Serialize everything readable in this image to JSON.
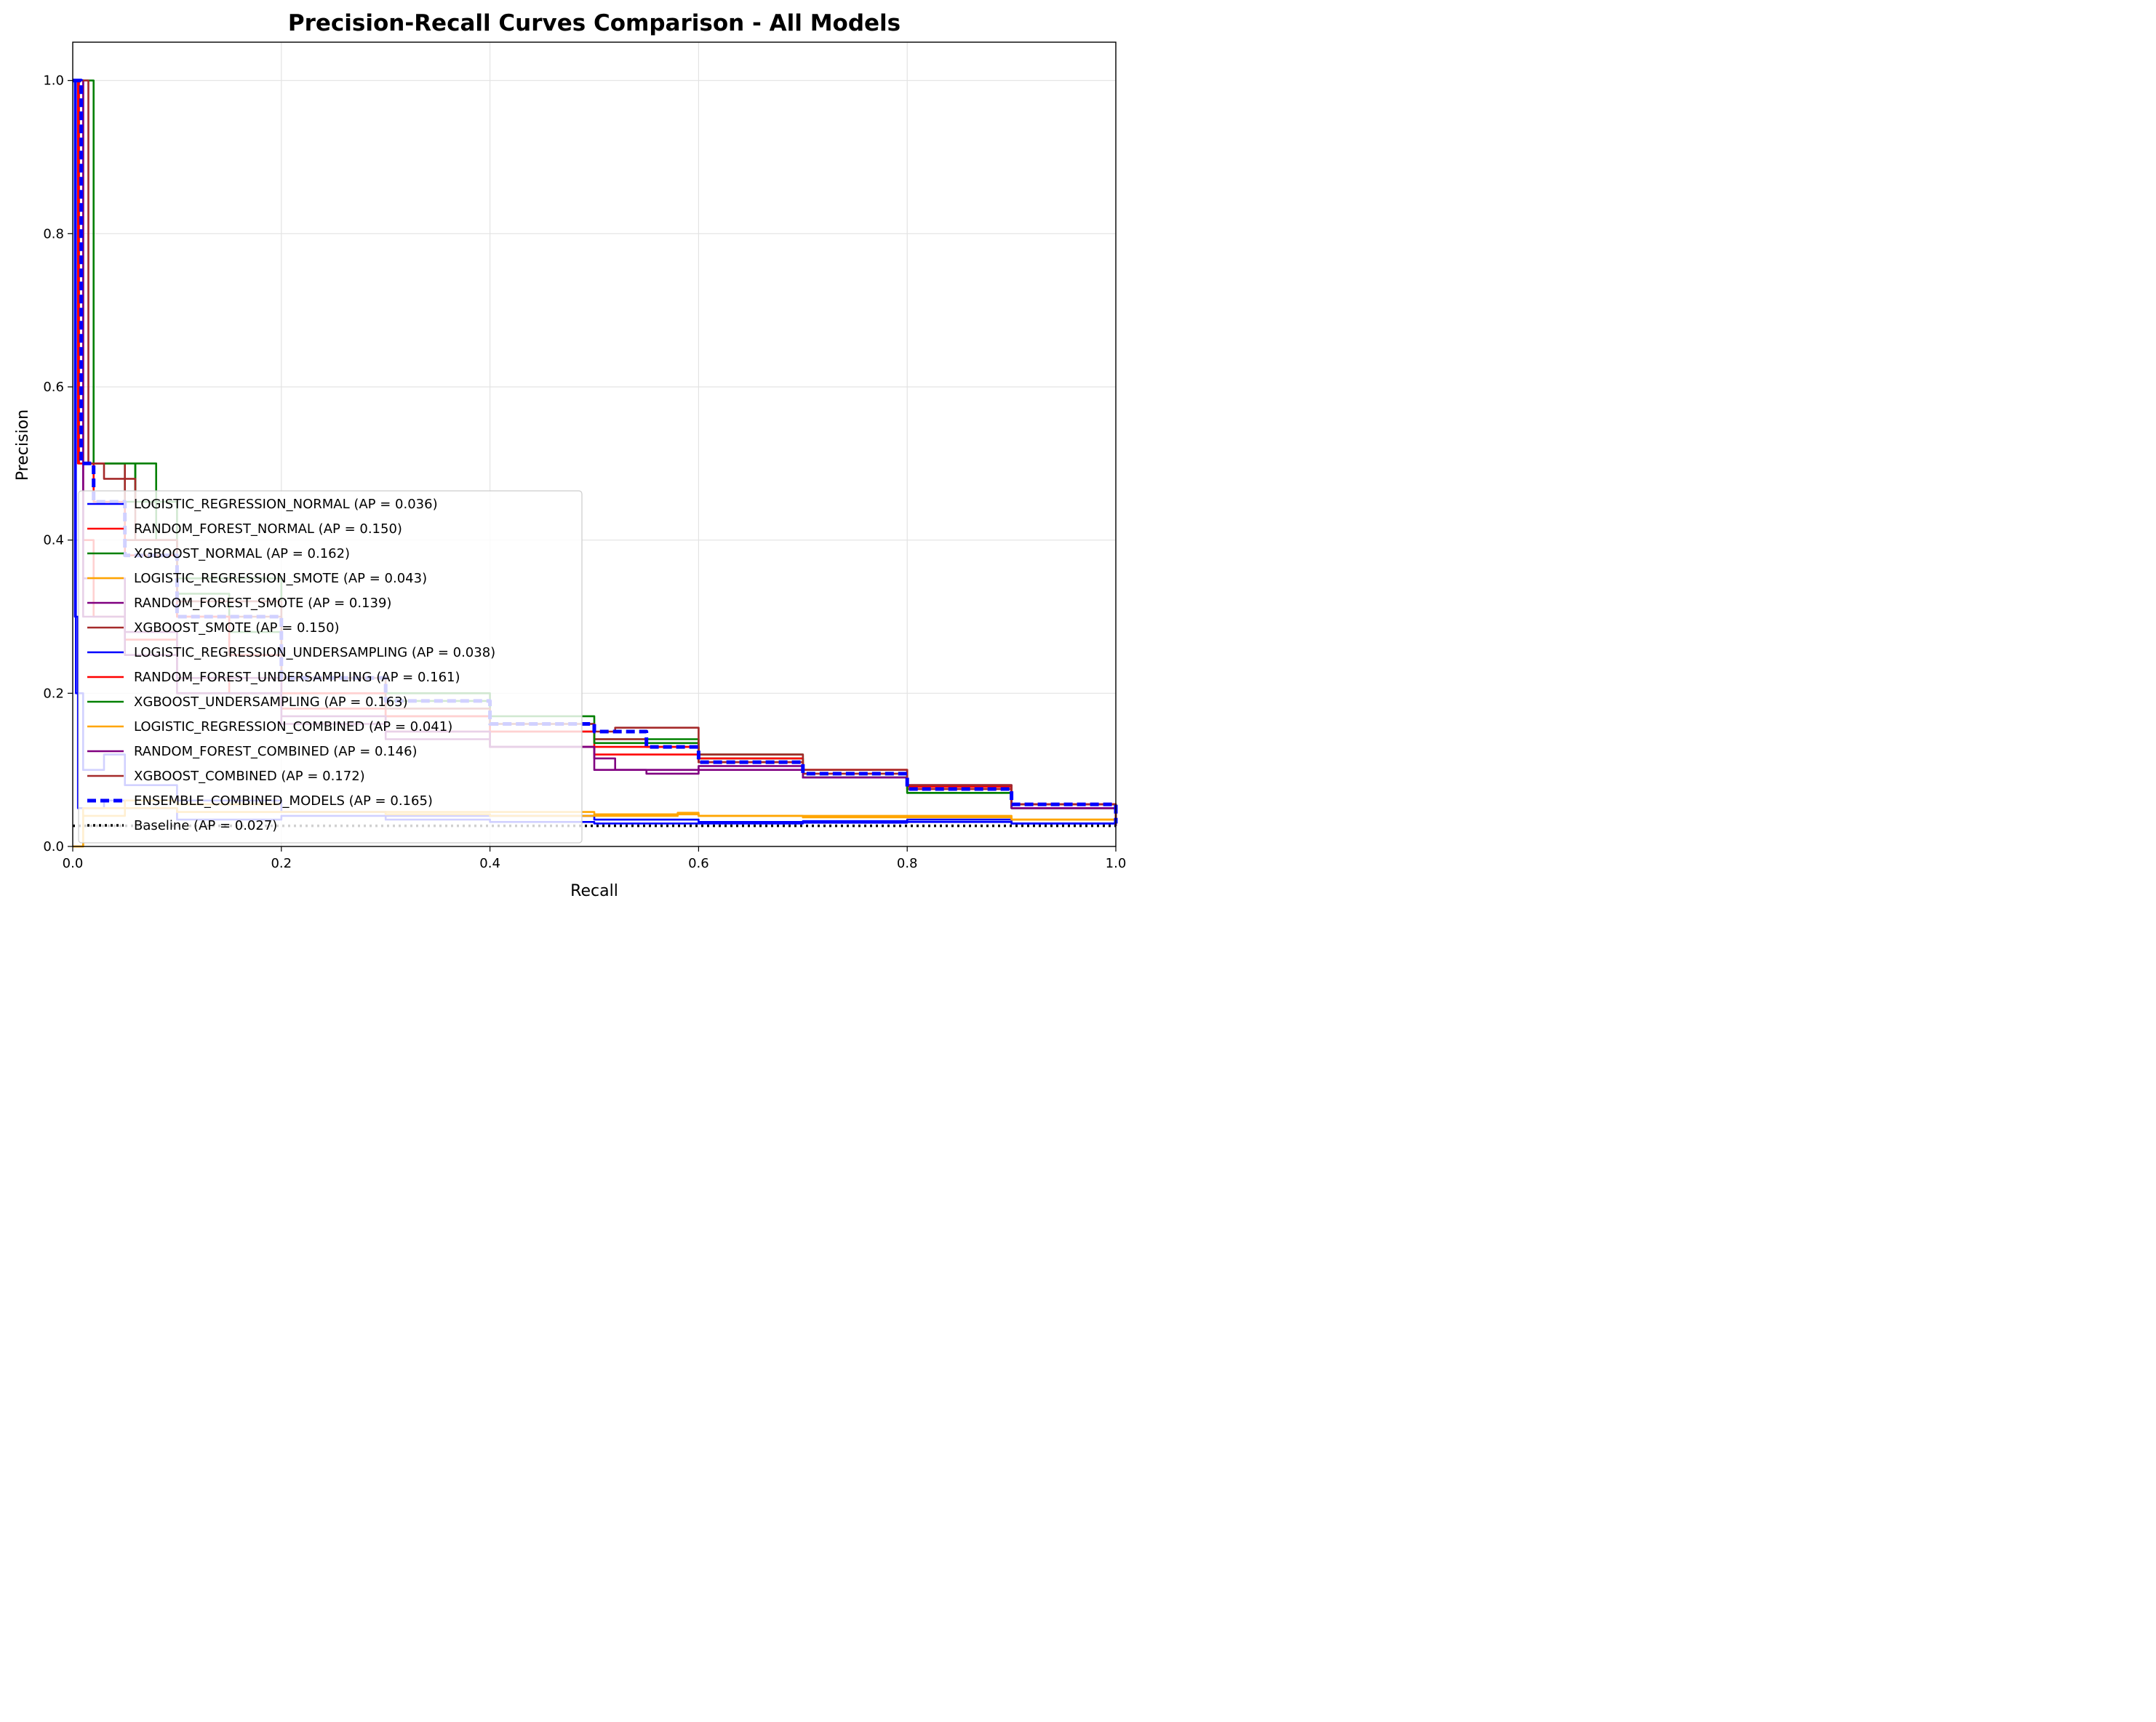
{
  "chart_data": {
    "type": "line",
    "title": "Precision-Recall Curves Comparison - All Models",
    "xlabel": "Recall",
    "ylabel": "Precision",
    "xlim": [
      0.0,
      1.0
    ],
    "ylim": [
      0.0,
      1.05
    ],
    "xticks": [
      "0.0",
      "0.2",
      "0.4",
      "0.6",
      "0.8",
      "1.0"
    ],
    "yticks": [
      "0.0",
      "0.2",
      "0.4",
      "0.6",
      "0.8",
      "1.0"
    ],
    "grid": true,
    "legend_position": "lower-left",
    "series": [
      {
        "name": "LOGISTIC_REGRESSION_NORMAL (AP = 0.036)",
        "color": "#0000ff",
        "dash": "solid",
        "points": [
          [
            0,
            1.0
          ],
          [
            0.002,
            0.3
          ],
          [
            0.005,
            0.05
          ],
          [
            0.03,
            0.06
          ],
          [
            0.05,
            0.05
          ],
          [
            0.1,
            0.035
          ],
          [
            0.2,
            0.04
          ],
          [
            0.3,
            0.035
          ],
          [
            0.4,
            0.032
          ],
          [
            0.5,
            0.03
          ],
          [
            0.6,
            0.03
          ],
          [
            0.7,
            0.031
          ],
          [
            0.8,
            0.032
          ],
          [
            0.9,
            0.03
          ],
          [
            1.0,
            0.027
          ]
        ]
      },
      {
        "name": "RANDOM_FOREST_NORMAL (AP = 0.150)",
        "color": "#ff0000",
        "dash": "solid",
        "points": [
          [
            0,
            1.0
          ],
          [
            0.005,
            0.5
          ],
          [
            0.01,
            0.4
          ],
          [
            0.02,
            0.3
          ],
          [
            0.05,
            0.27
          ],
          [
            0.1,
            0.22
          ],
          [
            0.15,
            0.2
          ],
          [
            0.2,
            0.18
          ],
          [
            0.3,
            0.15
          ],
          [
            0.4,
            0.13
          ],
          [
            0.5,
            0.12
          ],
          [
            0.6,
            0.11
          ],
          [
            0.7,
            0.1
          ],
          [
            0.8,
            0.075
          ],
          [
            0.9,
            0.05
          ],
          [
            1.0,
            0.027
          ]
        ]
      },
      {
        "name": "XGBOOST_NORMAL (AP = 0.162)",
        "color": "#008000",
        "dash": "solid",
        "points": [
          [
            0,
            1.0
          ],
          [
            0.01,
            0.5
          ],
          [
            0.03,
            0.5
          ],
          [
            0.05,
            0.45
          ],
          [
            0.06,
            0.5
          ],
          [
            0.08,
            0.4
          ],
          [
            0.1,
            0.33
          ],
          [
            0.15,
            0.28
          ],
          [
            0.2,
            0.22
          ],
          [
            0.3,
            0.19
          ],
          [
            0.4,
            0.17
          ],
          [
            0.5,
            0.14
          ],
          [
            0.6,
            0.115
          ],
          [
            0.7,
            0.09
          ],
          [
            0.8,
            0.07
          ],
          [
            0.9,
            0.05
          ],
          [
            1.0,
            0.03
          ]
        ]
      },
      {
        "name": "LOGISTIC_REGRESSION_SMOTE (AP = 0.043)",
        "color": "#ffa500",
        "dash": "solid",
        "points": [
          [
            0,
            0.0
          ],
          [
            0.01,
            0.05
          ],
          [
            0.05,
            0.06
          ],
          [
            0.1,
            0.055
          ],
          [
            0.2,
            0.045
          ],
          [
            0.3,
            0.045
          ],
          [
            0.4,
            0.045
          ],
          [
            0.5,
            0.042
          ],
          [
            0.6,
            0.04
          ],
          [
            0.7,
            0.038
          ],
          [
            0.8,
            0.04
          ],
          [
            0.9,
            0.035
          ],
          [
            1.0,
            0.027
          ]
        ]
      },
      {
        "name": "RANDOM_FOREST_SMOTE (AP = 0.139)",
        "color": "#800080",
        "dash": "solid",
        "points": [
          [
            0,
            1.0
          ],
          [
            0.01,
            0.3
          ],
          [
            0.05,
            0.25
          ],
          [
            0.1,
            0.2
          ],
          [
            0.2,
            0.16
          ],
          [
            0.3,
            0.14
          ],
          [
            0.4,
            0.13
          ],
          [
            0.5,
            0.1
          ],
          [
            0.55,
            0.095
          ],
          [
            0.6,
            0.1
          ],
          [
            0.7,
            0.09
          ],
          [
            0.8,
            0.08
          ],
          [
            0.9,
            0.05
          ],
          [
            1.0,
            0.027
          ]
        ]
      },
      {
        "name": "XGBOOST_SMOTE (AP = 0.150)",
        "color": "#a52a2a",
        "dash": "solid",
        "points": [
          [
            0,
            1.0
          ],
          [
            0.01,
            0.5
          ],
          [
            0.02,
            0.5
          ],
          [
            0.05,
            0.4
          ],
          [
            0.1,
            0.3
          ],
          [
            0.2,
            0.2
          ],
          [
            0.3,
            0.17
          ],
          [
            0.4,
            0.15
          ],
          [
            0.5,
            0.14
          ],
          [
            0.55,
            0.13
          ],
          [
            0.6,
            0.11
          ],
          [
            0.7,
            0.095
          ],
          [
            0.8,
            0.075
          ],
          [
            0.9,
            0.055
          ],
          [
            1.0,
            0.028
          ]
        ]
      },
      {
        "name": "LOGISTIC_REGRESSION_UNDERSAMPLING (AP = 0.038)",
        "color": "#0000ff",
        "dash": "solid",
        "points": [
          [
            0,
            1.0
          ],
          [
            0.003,
            0.2
          ],
          [
            0.01,
            0.1
          ],
          [
            0.03,
            0.12
          ],
          [
            0.05,
            0.08
          ],
          [
            0.1,
            0.06
          ],
          [
            0.2,
            0.045
          ],
          [
            0.3,
            0.04
          ],
          [
            0.4,
            0.04
          ],
          [
            0.5,
            0.035
          ],
          [
            0.6,
            0.032
          ],
          [
            0.7,
            0.033
          ],
          [
            0.8,
            0.035
          ],
          [
            0.9,
            0.03
          ],
          [
            1.0,
            0.027
          ]
        ]
      },
      {
        "name": "RANDOM_FOREST_UNDERSAMPLING (AP = 0.161)",
        "color": "#ff0000",
        "dash": "solid",
        "points": [
          [
            0,
            1.0
          ],
          [
            0.006,
            0.5
          ],
          [
            0.02,
            0.45
          ],
          [
            0.05,
            0.38
          ],
          [
            0.1,
            0.3
          ],
          [
            0.15,
            0.25
          ],
          [
            0.2,
            0.2
          ],
          [
            0.3,
            0.17
          ],
          [
            0.4,
            0.15
          ],
          [
            0.5,
            0.13
          ],
          [
            0.6,
            0.115
          ],
          [
            0.7,
            0.1
          ],
          [
            0.8,
            0.078
          ],
          [
            0.9,
            0.055
          ],
          [
            1.0,
            0.03
          ]
        ]
      },
      {
        "name": "XGBOOST_UNDERSAMPLING (AP = 0.163)",
        "color": "#008000",
        "dash": "solid",
        "points": [
          [
            0,
            1.0
          ],
          [
            0.02,
            0.5
          ],
          [
            0.04,
            0.5
          ],
          [
            0.06,
            0.45
          ],
          [
            0.1,
            0.35
          ],
          [
            0.2,
            0.22
          ],
          [
            0.3,
            0.2
          ],
          [
            0.4,
            0.16
          ],
          [
            0.5,
            0.135
          ],
          [
            0.6,
            0.12
          ],
          [
            0.7,
            0.09
          ],
          [
            0.8,
            0.07
          ],
          [
            0.9,
            0.05
          ],
          [
            1.0,
            0.03
          ]
        ]
      },
      {
        "name": "LOGISTIC_REGRESSION_COMBINED (AP = 0.041)",
        "color": "#ffa500",
        "dash": "solid",
        "points": [
          [
            0,
            0.0
          ],
          [
            0.01,
            0.04
          ],
          [
            0.05,
            0.05
          ],
          [
            0.1,
            0.045
          ],
          [
            0.2,
            0.045
          ],
          [
            0.3,
            0.042
          ],
          [
            0.4,
            0.04
          ],
          [
            0.5,
            0.04
          ],
          [
            0.58,
            0.044
          ],
          [
            0.6,
            0.04
          ],
          [
            0.7,
            0.04
          ],
          [
            0.8,
            0.038
          ],
          [
            0.9,
            0.035
          ],
          [
            1.0,
            0.027
          ]
        ]
      },
      {
        "name": "RANDOM_FOREST_COMBINED (AP = 0.146)",
        "color": "#800080",
        "dash": "solid",
        "points": [
          [
            0,
            1.0
          ],
          [
            0.01,
            0.35
          ],
          [
            0.05,
            0.28
          ],
          [
            0.1,
            0.22
          ],
          [
            0.2,
            0.17
          ],
          [
            0.3,
            0.15
          ],
          [
            0.4,
            0.13
          ],
          [
            0.5,
            0.115
          ],
          [
            0.52,
            0.1
          ],
          [
            0.6,
            0.105
          ],
          [
            0.7,
            0.09
          ],
          [
            0.8,
            0.08
          ],
          [
            0.9,
            0.05
          ],
          [
            1.0,
            0.027
          ]
        ]
      },
      {
        "name": "XGBOOST_COMBINED (AP = 0.172)",
        "color": "#a52a2a",
        "dash": "solid",
        "points": [
          [
            0,
            1.0
          ],
          [
            0.015,
            0.5
          ],
          [
            0.03,
            0.48
          ],
          [
            0.06,
            0.4
          ],
          [
            0.1,
            0.32
          ],
          [
            0.2,
            0.22
          ],
          [
            0.3,
            0.18
          ],
          [
            0.4,
            0.16
          ],
          [
            0.5,
            0.15
          ],
          [
            0.52,
            0.155
          ],
          [
            0.6,
            0.12
          ],
          [
            0.7,
            0.1
          ],
          [
            0.8,
            0.08
          ],
          [
            0.9,
            0.055
          ],
          [
            1.0,
            0.03
          ]
        ]
      },
      {
        "name": "ENSEMBLE_COMBINED_MODELS (AP = 0.165)",
        "color": "#0000ff",
        "dash": "dashed",
        "points": [
          [
            0,
            1.0
          ],
          [
            0.008,
            0.5
          ],
          [
            0.02,
            0.45
          ],
          [
            0.05,
            0.38
          ],
          [
            0.1,
            0.3
          ],
          [
            0.2,
            0.22
          ],
          [
            0.3,
            0.19
          ],
          [
            0.4,
            0.16
          ],
          [
            0.5,
            0.15
          ],
          [
            0.55,
            0.13
          ],
          [
            0.6,
            0.11
          ],
          [
            0.7,
            0.095
          ],
          [
            0.8,
            0.075
          ],
          [
            0.9,
            0.055
          ],
          [
            1.0,
            0.03
          ]
        ]
      },
      {
        "name": "Baseline (AP = 0.027)",
        "color": "#000000",
        "dash": "dotted",
        "points": [
          [
            0,
            0.027
          ],
          [
            1.0,
            0.027
          ]
        ]
      }
    ]
  }
}
